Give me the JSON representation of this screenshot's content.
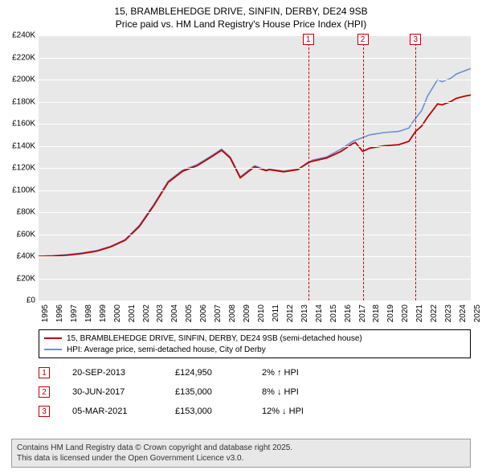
{
  "title_line1": "15, BRAMBLEHEDGE DRIVE, SINFIN, DERBY, DE24 9SB",
  "title_line2": "Price paid vs. HM Land Registry's House Price Index (HPI)",
  "chart": {
    "type": "line",
    "background_color": "#e8e8e8",
    "grid_color": "#ffffff",
    "x_start": 1995,
    "x_end": 2025,
    "xtick_step": 1,
    "xtick_labels": [
      "1995",
      "1996",
      "1997",
      "1998",
      "1999",
      "2000",
      "2001",
      "2002",
      "2003",
      "2004",
      "2005",
      "2006",
      "2007",
      "2008",
      "2009",
      "2010",
      "2011",
      "2012",
      "2013",
      "2014",
      "2015",
      "2016",
      "2017",
      "2018",
      "2019",
      "2020",
      "2021",
      "2022",
      "2023",
      "2024",
      "2025"
    ],
    "ylim": [
      0,
      240000
    ],
    "ytick_step": 20000,
    "ytick_labels": [
      "£0",
      "£20K",
      "£40K",
      "£60K",
      "£80K",
      "£100K",
      "£120K",
      "£140K",
      "£160K",
      "£180K",
      "£200K",
      "£220K",
      "£240K"
    ],
    "label_fontsize": 10,
    "series": [
      {
        "name": "hpi",
        "color": "#6b8fd4",
        "width": 1.6,
        "points": [
          [
            1995,
            40000
          ],
          [
            1996,
            40500
          ],
          [
            1997,
            41500
          ],
          [
            1998,
            43000
          ],
          [
            1999,
            45000
          ],
          [
            2000,
            49000
          ],
          [
            2001,
            55000
          ],
          [
            2002,
            68000
          ],
          [
            2003,
            87000
          ],
          [
            2004,
            108000
          ],
          [
            2005,
            118000
          ],
          [
            2006,
            123000
          ],
          [
            2007,
            131000
          ],
          [
            2007.7,
            137000
          ],
          [
            2008.3,
            130000
          ],
          [
            2009,
            112000
          ],
          [
            2009.6,
            118000
          ],
          [
            2010,
            122000
          ],
          [
            2010.8,
            118000
          ],
          [
            2011,
            119000
          ],
          [
            2012,
            117000
          ],
          [
            2013,
            119000
          ],
          [
            2013.7,
            124000
          ],
          [
            2014,
            127000
          ],
          [
            2015,
            130000
          ],
          [
            2016,
            137000
          ],
          [
            2016.8,
            144000
          ],
          [
            2017,
            145000
          ],
          [
            2017.6,
            148000
          ],
          [
            2018,
            150000
          ],
          [
            2019,
            152000
          ],
          [
            2020,
            153000
          ],
          [
            2020.7,
            156000
          ],
          [
            2021,
            162000
          ],
          [
            2021.6,
            172000
          ],
          [
            2022,
            185000
          ],
          [
            2022.7,
            200000
          ],
          [
            2023,
            198000
          ],
          [
            2023.6,
            201000
          ],
          [
            2024,
            205000
          ],
          [
            2024.6,
            208000
          ],
          [
            2025,
            210000
          ]
        ]
      },
      {
        "name": "property",
        "color": "#c00000",
        "width": 1.8,
        "points": [
          [
            1995,
            40000
          ],
          [
            1996,
            40200
          ],
          [
            1997,
            41000
          ],
          [
            1998,
            42500
          ],
          [
            1999,
            44500
          ],
          [
            2000,
            48500
          ],
          [
            2001,
            54500
          ],
          [
            2002,
            67000
          ],
          [
            2003,
            86000
          ],
          [
            2004,
            107000
          ],
          [
            2005,
            117000
          ],
          [
            2006,
            122000
          ],
          [
            2007,
            130000
          ],
          [
            2007.7,
            136000
          ],
          [
            2008.3,
            129000
          ],
          [
            2009,
            111000
          ],
          [
            2009.6,
            117000
          ],
          [
            2010,
            121000
          ],
          [
            2010.8,
            117500
          ],
          [
            2011,
            118500
          ],
          [
            2012,
            116500
          ],
          [
            2013,
            118500
          ],
          [
            2013.72,
            124950
          ],
          [
            2014,
            126000
          ],
          [
            2015,
            129000
          ],
          [
            2016,
            135000
          ],
          [
            2016.8,
            142000
          ],
          [
            2017,
            143000
          ],
          [
            2017.5,
            135000
          ],
          [
            2018,
            138000
          ],
          [
            2019,
            140000
          ],
          [
            2020,
            141000
          ],
          [
            2020.7,
            144000
          ],
          [
            2021.17,
            153000
          ],
          [
            2021.6,
            158000
          ],
          [
            2022,
            166000
          ],
          [
            2022.7,
            178000
          ],
          [
            2023,
            177000
          ],
          [
            2023.6,
            180000
          ],
          [
            2024,
            183000
          ],
          [
            2024.6,
            185000
          ],
          [
            2025,
            186000
          ]
        ]
      }
    ],
    "vmarkers": [
      {
        "num": "1",
        "x": 2013.72
      },
      {
        "num": "2",
        "x": 2017.5
      },
      {
        "num": "3",
        "x": 2021.17
      }
    ]
  },
  "legend": {
    "border_color": "#000000",
    "items": [
      {
        "color": "#c00000",
        "label": "15, BRAMBLEHEDGE DRIVE, SINFIN, DERBY, DE24 9SB (semi-detached house)"
      },
      {
        "color": "#6b8fd4",
        "label": "HPI: Average price, semi-detached house, City of Derby"
      }
    ]
  },
  "transactions": [
    {
      "num": "1",
      "date": "20-SEP-2013",
      "price": "£124,950",
      "pct": "2% ↑ HPI"
    },
    {
      "num": "2",
      "date": "30-JUN-2017",
      "price": "£135,000",
      "pct": "8% ↓ HPI"
    },
    {
      "num": "3",
      "date": "05-MAR-2021",
      "price": "£153,000",
      "pct": "12% ↓ HPI"
    }
  ],
  "footer_line1": "Contains HM Land Registry data © Crown copyright and database right 2025.",
  "footer_line2": "This data is licensed under the Open Government Licence v3.0.",
  "marker_border_color": "#c00000"
}
